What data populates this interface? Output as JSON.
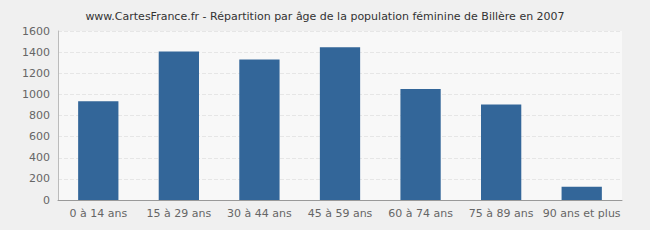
{
  "chart_data": {
    "type": "bar",
    "title": "www.CartesFrance.fr - Répartition par âge de la population féminine de Billère en 2007",
    "categories": [
      "0 à 14 ans",
      "15 à 29 ans",
      "30 à 44 ans",
      "45 à 59 ans",
      "60 à 74 ans",
      "75 à 89 ans",
      "90 ans et plus"
    ],
    "values": [
      935,
      1405,
      1330,
      1445,
      1050,
      905,
      125
    ],
    "color": "#336699",
    "ylim": [
      0,
      1600
    ],
    "yticks": [
      0,
      200,
      400,
      600,
      800,
      1000,
      1200,
      1400,
      1600
    ],
    "grid": true
  }
}
